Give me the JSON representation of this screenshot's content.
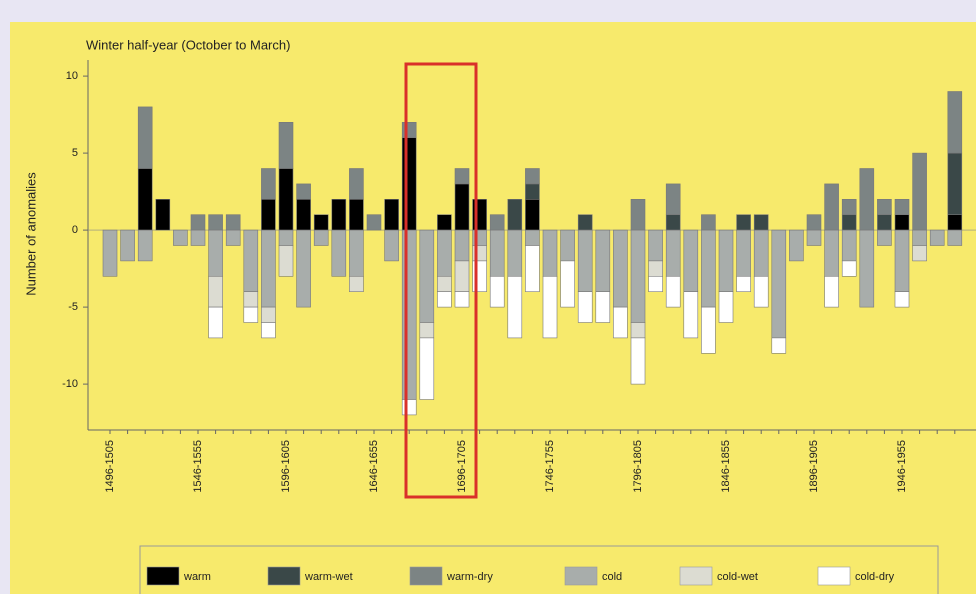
{
  "chart_data": {
    "type": "stacked_bar",
    "title": "Winter half-year (October to March)",
    "y_label": "Number of anomalies",
    "categories": [
      "1496-1505",
      null,
      null,
      null,
      null,
      "1546-1555",
      null,
      null,
      null,
      null,
      "1596-1605",
      null,
      null,
      null,
      null,
      "1646-1655",
      null,
      null,
      null,
      null,
      "1696-1705",
      null,
      null,
      null,
      null,
      "1746-1755",
      null,
      null,
      null,
      null,
      "1796-1805",
      null,
      null,
      null,
      null,
      "1846-1855",
      null,
      null,
      null,
      null,
      "1896-1905",
      null,
      null,
      null,
      null,
      "1946-1955",
      null,
      null,
      null
    ],
    "series": [
      {
        "name": "warm",
        "color": "#000000",
        "values": [
          0,
          0,
          4,
          2,
          0,
          0,
          0,
          0,
          0,
          2,
          4,
          2,
          1,
          2,
          2,
          0,
          2,
          6,
          0,
          1,
          3,
          2,
          0,
          0,
          2,
          0,
          0,
          0,
          0,
          0,
          0,
          0,
          0,
          0,
          0,
          0,
          0,
          0,
          0,
          0,
          0,
          0,
          0,
          0,
          0,
          1,
          0,
          0,
          1
        ]
      },
      {
        "name": "warm-wet",
        "color": "#3a4848",
        "values": [
          0,
          0,
          0,
          0,
          0,
          0,
          0,
          0,
          0,
          0,
          0,
          0,
          0,
          0,
          0,
          0,
          0,
          0,
          0,
          0,
          0,
          0,
          0,
          2,
          1,
          0,
          0,
          1,
          0,
          0,
          0,
          0,
          1,
          0,
          0,
          0,
          1,
          1,
          0,
          0,
          0,
          0,
          1,
          0,
          1,
          0,
          0,
          0,
          4
        ]
      },
      {
        "name": "warm-dry",
        "color": "#7c8484",
        "values": [
          0,
          0,
          4,
          0,
          0,
          1,
          1,
          1,
          0,
          2,
          3,
          1,
          0,
          0,
          2,
          1,
          0,
          1,
          0,
          0,
          1,
          0,
          1,
          0,
          1,
          0,
          0,
          0,
          0,
          0,
          2,
          0,
          2,
          0,
          1,
          0,
          0,
          0,
          0,
          0,
          1,
          3,
          1,
          4,
          1,
          1,
          5,
          0,
          4
        ]
      },
      {
        "name": "cold",
        "color": "#a8adab",
        "values": [
          -3,
          -2,
          -2,
          0,
          -1,
          -1,
          -3,
          -1,
          -4,
          -5,
          -1,
          -5,
          -1,
          -3,
          -3,
          0,
          -2,
          -11,
          -6,
          -3,
          -2,
          -1,
          -3,
          -3,
          -1,
          -3,
          -2,
          -4,
          -4,
          -5,
          -6,
          -2,
          -3,
          -4,
          -5,
          -4,
          -3,
          -3,
          -7,
          -2,
          -1,
          -3,
          -2,
          -5,
          -1,
          -4,
          -1,
          -1,
          -1
        ]
      },
      {
        "name": "cold-wet",
        "color": "#dcdcd2",
        "values": [
          0,
          0,
          0,
          0,
          0,
          0,
          -2,
          0,
          -1,
          -1,
          -2,
          0,
          0,
          0,
          -1,
          0,
          0,
          0,
          -1,
          -1,
          -2,
          -1,
          0,
          0,
          0,
          0,
          0,
          0,
          0,
          0,
          -1,
          -1,
          0,
          0,
          0,
          0,
          0,
          0,
          0,
          0,
          0,
          0,
          0,
          0,
          0,
          0,
          -1,
          0,
          0
        ]
      },
      {
        "name": "cold-dry",
        "color": "#ffffff",
        "values": [
          0,
          0,
          0,
          0,
          0,
          0,
          -2,
          0,
          -1,
          -1,
          0,
          0,
          0,
          0,
          0,
          0,
          0,
          -1,
          -4,
          -1,
          -1,
          -2,
          -2,
          -4,
          -3,
          -4,
          -3,
          -2,
          -2,
          -2,
          -3,
          -1,
          -2,
          -3,
          -3,
          -2,
          -1,
          -2,
          -1,
          0,
          0,
          -2,
          -1,
          0,
          0,
          -1,
          0,
          0,
          0
        ]
      }
    ],
    "ylim": [
      -13,
      11
    ],
    "yticks": [
      10,
      5,
      0,
      -5,
      -10
    ]
  }
}
